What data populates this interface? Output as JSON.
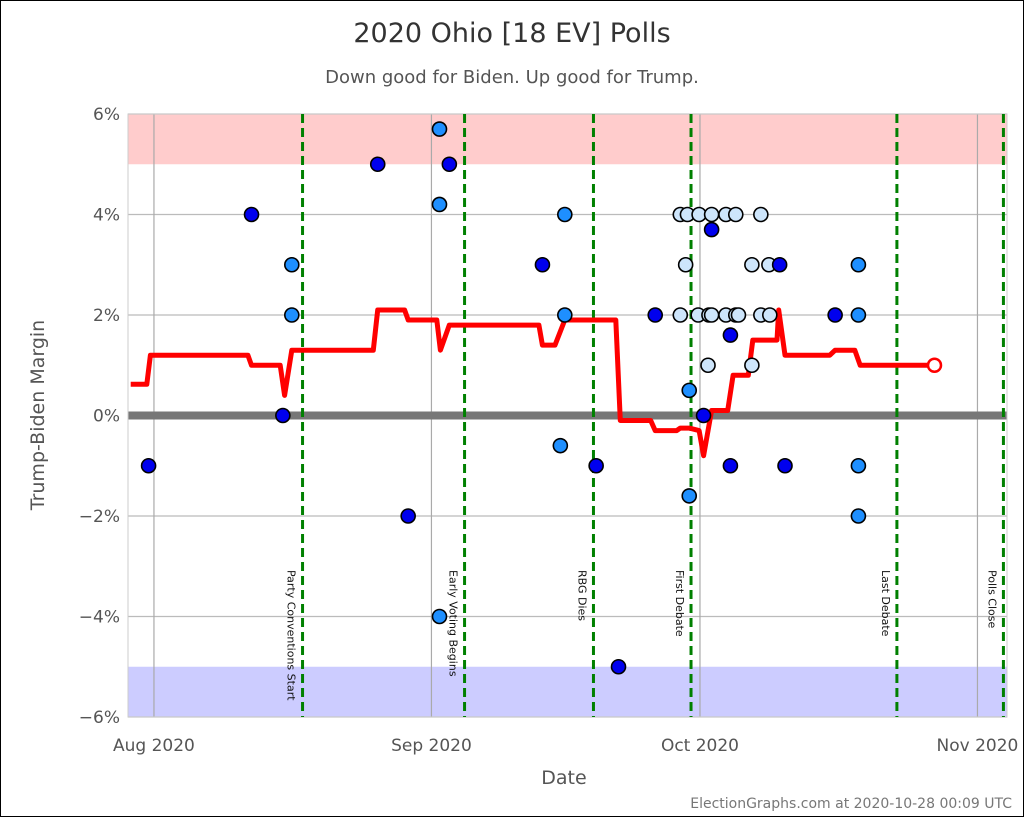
{
  "chart_data": {
    "type": "scatter",
    "title": "2020 Ohio [18 EV] Polls",
    "subtitle": "Down good for Biden. Up good for Trump.",
    "xlabel": "Date",
    "ylabel": "Trump-Biden Margin",
    "x_unit": "days since 2020-08-01",
    "xlim": [
      -2.9,
      95.3
    ],
    "ylim": [
      -6,
      6
    ],
    "grid": true,
    "x_ticks": [
      {
        "value": 0,
        "label": "Aug 2020"
      },
      {
        "value": 31,
        "label": "Sep 2020"
      },
      {
        "value": 61,
        "label": "Oct 2020"
      },
      {
        "value": 92,
        "label": "Nov 2020"
      }
    ],
    "y_ticks": [
      {
        "value": 6,
        "label": "6%"
      },
      {
        "value": 4,
        "label": "4%"
      },
      {
        "value": 2,
        "label": "2%"
      },
      {
        "value": 0,
        "label": "0%"
      },
      {
        "value": -2,
        "label": "−2%"
      },
      {
        "value": -4,
        "label": "−4%"
      },
      {
        "value": -6,
        "label": "−6%"
      }
    ],
    "bands": [
      {
        "from": 5,
        "to": 6,
        "color": "#ffcccc"
      },
      {
        "from": -6,
        "to": -5,
        "color": "#ccccff"
      }
    ],
    "events": [
      {
        "x": 16.6,
        "label": "Party Conventions Start"
      },
      {
        "x": 34.7,
        "label": "Early Voting Begins"
      },
      {
        "x": 49.1,
        "label": "RBG Dies"
      },
      {
        "x": 60.0,
        "label": "First Debate"
      },
      {
        "x": 83.0,
        "label": "Last Debate"
      },
      {
        "x": 94.9,
        "label": "Polls Close"
      }
    ],
    "colors": {
      "dark": "#0000ee",
      "mid": "#1e8fff",
      "light": "#cde5fb",
      "average": "#ff0000",
      "event": "#008000"
    },
    "points": [
      {
        "x": -0.6,
        "y": -1.0,
        "c": "dark"
      },
      {
        "x": 10.9,
        "y": 4.0,
        "c": "dark"
      },
      {
        "x": 15.4,
        "y": 3.0,
        "c": "mid"
      },
      {
        "x": 15.4,
        "y": 2.0,
        "c": "mid"
      },
      {
        "x": 14.4,
        "y": 0.0,
        "c": "dark"
      },
      {
        "x": 25.0,
        "y": 5.0,
        "c": "dark"
      },
      {
        "x": 28.4,
        "y": -2.0,
        "c": "dark"
      },
      {
        "x": 31.9,
        "y": 5.7,
        "c": "mid"
      },
      {
        "x": 33.0,
        "y": 5.0,
        "c": "dark"
      },
      {
        "x": 31.9,
        "y": 4.2,
        "c": "mid"
      },
      {
        "x": 31.9,
        "y": -4.0,
        "c": "mid"
      },
      {
        "x": 43.4,
        "y": 3.0,
        "c": "dark"
      },
      {
        "x": 45.9,
        "y": 4.0,
        "c": "mid"
      },
      {
        "x": 45.9,
        "y": 2.0,
        "c": "mid"
      },
      {
        "x": 45.4,
        "y": -0.6,
        "c": "mid"
      },
      {
        "x": 49.4,
        "y": -1.0,
        "c": "dark"
      },
      {
        "x": 51.9,
        "y": -5.0,
        "c": "dark"
      },
      {
        "x": 56.0,
        "y": 2.0,
        "c": "dark"
      },
      {
        "x": 58.8,
        "y": 4.0,
        "c": "light"
      },
      {
        "x": 59.6,
        "y": 4.0,
        "c": "light"
      },
      {
        "x": 60.9,
        "y": 4.0,
        "c": "light"
      },
      {
        "x": 62.3,
        "y": 4.0,
        "c": "light"
      },
      {
        "x": 63.9,
        "y": 4.0,
        "c": "light"
      },
      {
        "x": 65.0,
        "y": 4.0,
        "c": "light"
      },
      {
        "x": 67.8,
        "y": 4.0,
        "c": "light"
      },
      {
        "x": 62.3,
        "y": 3.7,
        "c": "dark"
      },
      {
        "x": 59.4,
        "y": 3.0,
        "c": "light"
      },
      {
        "x": 66.8,
        "y": 3.0,
        "c": "light"
      },
      {
        "x": 68.7,
        "y": 3.0,
        "c": "light"
      },
      {
        "x": 69.9,
        "y": 3.0,
        "c": "dark"
      },
      {
        "x": 58.8,
        "y": 2.0,
        "c": "light"
      },
      {
        "x": 60.8,
        "y": 2.0,
        "c": "light"
      },
      {
        "x": 62.0,
        "y": 2.0,
        "c": "light"
      },
      {
        "x": 62.3,
        "y": 2.0,
        "c": "light"
      },
      {
        "x": 63.9,
        "y": 2.0,
        "c": "light"
      },
      {
        "x": 65.0,
        "y": 2.0,
        "c": "light"
      },
      {
        "x": 65.3,
        "y": 2.0,
        "c": "light"
      },
      {
        "x": 67.8,
        "y": 2.0,
        "c": "light"
      },
      {
        "x": 68.8,
        "y": 2.0,
        "c": "light"
      },
      {
        "x": 64.4,
        "y": 1.6,
        "c": "dark"
      },
      {
        "x": 61.9,
        "y": 1.0,
        "c": "light"
      },
      {
        "x": 66.8,
        "y": 1.0,
        "c": "light"
      },
      {
        "x": 59.8,
        "y": 0.5,
        "c": "mid"
      },
      {
        "x": 61.4,
        "y": 0.0,
        "c": "dark"
      },
      {
        "x": 59.8,
        "y": -1.6,
        "c": "mid"
      },
      {
        "x": 64.4,
        "y": -1.0,
        "c": "dark"
      },
      {
        "x": 70.5,
        "y": -1.0,
        "c": "dark"
      },
      {
        "x": 76.1,
        "y": 2.0,
        "c": "dark"
      },
      {
        "x": 78.7,
        "y": 3.0,
        "c": "mid"
      },
      {
        "x": 78.7,
        "y": 2.0,
        "c": "mid"
      },
      {
        "x": 78.7,
        "y": -1.0,
        "c": "mid"
      },
      {
        "x": 78.7,
        "y": -2.0,
        "c": "mid"
      }
    ],
    "average": [
      [
        -2.6,
        0.62
      ],
      [
        -0.8,
        0.62
      ],
      [
        -0.4,
        1.2
      ],
      [
        10.5,
        1.2
      ],
      [
        10.9,
        1.0
      ],
      [
        14.1,
        1.0
      ],
      [
        14.6,
        0.4
      ],
      [
        15.4,
        1.3
      ],
      [
        24.5,
        1.3
      ],
      [
        25.0,
        2.1
      ],
      [
        28.0,
        2.1
      ],
      [
        28.4,
        1.9
      ],
      [
        31.6,
        1.9
      ],
      [
        32.0,
        1.3
      ],
      [
        33.0,
        1.8
      ],
      [
        43.0,
        1.8
      ],
      [
        43.4,
        1.4
      ],
      [
        44.8,
        1.4
      ],
      [
        45.9,
        1.9
      ],
      [
        51.6,
        1.9
      ],
      [
        52.1,
        -0.1
      ],
      [
        55.5,
        -0.1
      ],
      [
        56.0,
        -0.3
      ],
      [
        58.4,
        -0.3
      ],
      [
        58.8,
        -0.25
      ],
      [
        59.8,
        -0.25
      ],
      [
        60.9,
        -0.3
      ],
      [
        61.4,
        -0.8
      ],
      [
        62.3,
        0.1
      ],
      [
        64.1,
        0.1
      ],
      [
        64.7,
        0.8
      ],
      [
        66.4,
        0.8
      ],
      [
        66.9,
        1.5
      ],
      [
        69.6,
        1.5
      ],
      [
        69.8,
        2.1
      ],
      [
        70.5,
        1.2
      ],
      [
        75.5,
        1.2
      ],
      [
        76.1,
        1.3
      ],
      [
        78.3,
        1.3
      ],
      [
        78.9,
        1.0
      ],
      [
        87.2,
        1.0
      ]
    ]
  },
  "footer": "ElectionGraphs.com at 2020-10-28 00:09 UTC"
}
